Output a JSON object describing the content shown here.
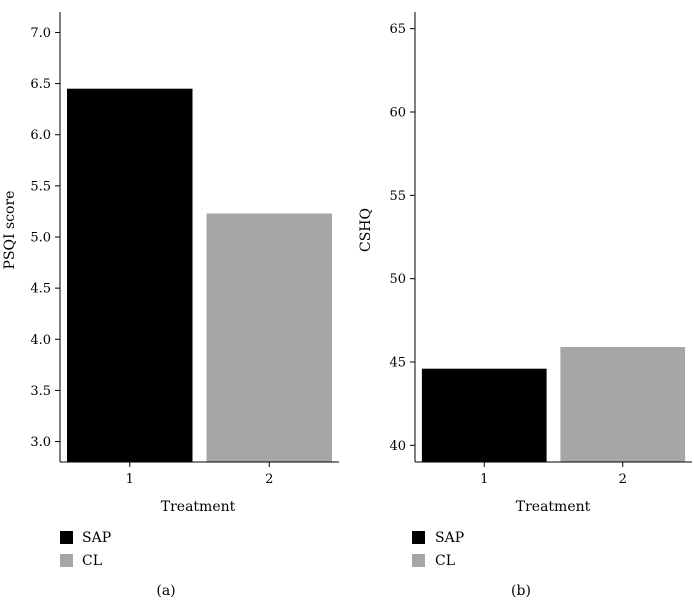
{
  "chart_data": [
    {
      "type": "bar",
      "panel_label": "(a)",
      "categories": [
        "1",
        "2"
      ],
      "series": [
        {
          "name": "SAP",
          "color": "#000000",
          "values": [
            6.45,
            null
          ]
        },
        {
          "name": "CL",
          "color": "#a6a6a6",
          "values": [
            null,
            5.23
          ]
        }
      ],
      "xlabel": "Treatment",
      "ylabel": "PSQI score",
      "ylim": [
        2.8,
        7.2
      ],
      "yticks": [
        "3.0",
        "3.5",
        "4.0",
        "4.5",
        "5.0",
        "5.5",
        "6.0",
        "6.5",
        "7.0"
      ],
      "grid": false,
      "legend_position": "bottom-left"
    },
    {
      "type": "bar",
      "panel_label": "(b)",
      "categories": [
        "1",
        "2"
      ],
      "series": [
        {
          "name": "SAP",
          "color": "#000000",
          "values": [
            44.6,
            null
          ]
        },
        {
          "name": "CL",
          "color": "#a6a6a6",
          "values": [
            null,
            45.9
          ]
        }
      ],
      "xlabel": "Treatment",
      "ylabel": "CSHQ",
      "ylim": [
        39.0,
        66.0
      ],
      "yticks": [
        "40",
        "45",
        "50",
        "55",
        "60",
        "65"
      ],
      "grid": false,
      "legend_position": "bottom-left"
    }
  ]
}
